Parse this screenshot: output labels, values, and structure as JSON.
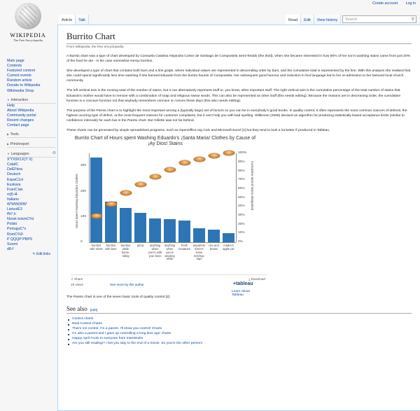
{
  "site": {
    "name": "WIKIPEDIA",
    "tagline": "The Free Encyclopedia"
  },
  "personal": {
    "create_account": "Create account",
    "login": "Log in"
  },
  "tabs_left": [
    "Article",
    "Talk"
  ],
  "tabs_right": [
    "Read",
    "Edit",
    "View history"
  ],
  "search": {
    "placeholder": "Search"
  },
  "nav_main": [
    "Main page",
    "Contents",
    "Featured content",
    "Current events",
    "Random article",
    "Donate to Wikipedia",
    "Wikimedia Shop"
  ],
  "interaction": {
    "head": "Interaction",
    "items": [
      "Help",
      "About Wikipedia",
      "Community portal",
      "Recent changes",
      "Contact page"
    ]
  },
  "tools": {
    "head": "Tools"
  },
  "print": {
    "head": "Print/export"
  },
  "languages": {
    "head": "Languages",
    "items": [
      "X'YX9X1X(Y X)",
      "CatalC",
      "DeEFtina",
      "Deutsch",
      "EspaC1ol",
      "Euskara",
      "FranC'ais",
      "m]5-l4",
      "Italiano",
      "W'WW(WW'",
      "LietuviE3",
      "fN7,h",
      "Norsk bokmC%l",
      "Polski",
      "PortuguC*s",
      "RomC%0",
      "P QQQP:PBP9",
      "Suomi",
      "d8-f"
    ],
    "edit_links": "Edit links"
  },
  "article": {
    "title": "Burrito Chart",
    "from": "From Wikipedia, the free encyclopedia",
    "p1": "A Burrito chart was a type of chart developed by Consuela Catalina Alejandra Cortez de Santiago de Compostela Semi-freddo (the third), when she became interested in how 80% of her son's washing stains came from just 20% of the food he ate - in his case somewhat messy burritos.",
    "p2": "She developed a type of chart that contains both bars and a line graph, where individual values are represented in descending order by bars, and the cumulative total is represented by the line. With this analysis she realised that she could spend significantly less time washing if she banned Eduardo from the burrito haunts of Compostela. Her subsequent good humour and reduction in foul language led to her re-admission to her beloved local church community.",
    "p3": "The left vertical axis is the running total of the number of stains, but it can alternatively represent stuff or, you know, other important stuff. The right vertical axis is the cumulative percentage of the total number of stains that Eduardo's mother would have to remove with a combination of soap and religious swear words. This can also be represented as other stuff (this needs editing). Because the reasons are in decreasing order, the cumulative function is a concave function not that anybody remembers concave or convex these days (this also needs editing).",
    "p4": "The purpose of the Pareto chart is to highlight the most important among a (typically large) set of factors so you can be in everybody's good books. In quality control, it often represents the most common sources of defects, the highest ocurring type of defect, or the most frequent reasons for customer complaints, but it can't help you with bad spelling. Wilkinson (2006) devised an algorithm for producing statistically based acceptance limits (similar to confidence intervals) for each bar in the Pareto chart. But Gillette was not far behind.",
    "p5": "These charts can be generated by simple spreadsheet programs, such as OpenOffice.org Calc and Microsoft Excel [1] but they tend to look a lot better if produced in Tableau.",
    "pareto_note": "The Pareto chart is one of the seven basic tools of quality control.[2]"
  },
  "chart_data": {
    "type": "bar",
    "title": "Burrito Chart of Hours spent Washing Eduardo's ¡Santa Maria! Clothes by Cause of ¡Ay Dios! Stains",
    "categories": [
      "burritos with shots",
      "burritos with beer",
      "burritos while horse-riding",
      "pizza",
      "anything when you're with your boss",
      "anything when you're wearing white",
      "fresh tomatoes",
      "anywhere there's loose ketchup tops",
      "rice and beans",
      "madre's apple pie"
    ],
    "values": [
      335,
      160,
      135,
      115,
      95,
      90,
      85,
      55,
      50,
      35
    ],
    "cumulative_pct": [
      29,
      43,
      55,
      65,
      73,
      81,
      89,
      93,
      97,
      100
    ],
    "ylabel": "Hours Spent Washing Eduardo's Clothes",
    "y2label": "Cumulative total of stains designated",
    "yticks": [
      0,
      100,
      200,
      300
    ],
    "y2ticks": [
      "0%",
      "10%",
      "20%",
      "30%",
      "40%",
      "50%",
      "60%",
      "70%",
      "80%",
      "90%",
      "100%"
    ],
    "ylim": [
      0,
      350
    ],
    "y2lim": [
      0,
      100
    ],
    "bar_color": "#2e75b6"
  },
  "widget": {
    "share": "Share",
    "download": "Download",
    "views": "19 views",
    "more": "See more by this author",
    "brand": "+tableau",
    "learn": "Learn About Tableau"
  },
  "see_also": {
    "head": "See also",
    "edit": "[edit]",
    "items": [
      "Control charts",
      "Real Control Charts",
      "That's not control, I'm a parent, I'll show you control! Charts",
      "I'm also a parent and I gave up controlling a long time ago' charts",
      "Happy April Fools to everyone from InterWorks",
      "Are you still reading!? I bet you stay to the end of a movie. So you're the other person!"
    ]
  }
}
